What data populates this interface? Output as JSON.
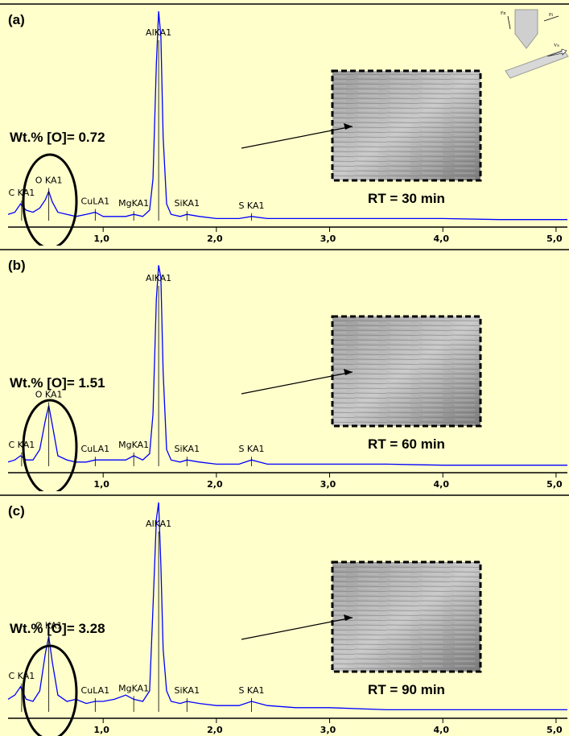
{
  "chart_data": [
    {
      "type": "line",
      "panel_label": "(a)",
      "annotation": "Wt.% [O]= 0.72",
      "caption": "RT = 30 min",
      "color": "#0000ff",
      "x": [
        0.16,
        0.22,
        0.27,
        0.32,
        0.38,
        0.44,
        0.49,
        0.52,
        0.55,
        0.6,
        0.68,
        0.76,
        0.85,
        0.93,
        1.0,
        1.1,
        1.2,
        1.27,
        1.35,
        1.41,
        1.44,
        1.47,
        1.49,
        1.51,
        1.53,
        1.56,
        1.6,
        1.68,
        1.74,
        1.85,
        2.0,
        2.2,
        2.31,
        2.45,
        2.7,
        3.0,
        3.5,
        4.0,
        4.5,
        5.1
      ],
      "values": [
        3,
        4,
        8,
        5,
        4,
        6,
        10,
        14,
        9,
        4,
        3,
        2,
        3,
        4,
        2,
        2,
        2,
        3,
        2,
        5,
        20,
        75,
        100,
        88,
        40,
        8,
        3,
        2,
        3,
        2,
        1,
        1,
        2,
        1,
        1,
        1,
        1,
        1,
        0.5,
        0.5
      ],
      "xlim": [
        0.16,
        5.1
      ],
      "ylim": [
        0,
        100
      ],
      "xticks": [
        {
          "value": 1,
          "label": "1,0"
        },
        {
          "value": 2,
          "label": "2,0"
        },
        {
          "value": 3,
          "label": "3,0"
        },
        {
          "value": 4,
          "label": "4,0"
        },
        {
          "value": 5,
          "label": "5,0"
        }
      ],
      "peaks": [
        {
          "label": "C KA1",
          "x": 0.28
        },
        {
          "label": "O KA1",
          "x": 0.52
        },
        {
          "label": "CuLA1",
          "x": 0.93
        },
        {
          "label": "MgKA1",
          "x": 1.27
        },
        {
          "label": "AlKA1",
          "x": 1.49
        },
        {
          "label": "SiKA1",
          "x": 1.74
        },
        {
          "label": "S KA1",
          "x": 2.31
        }
      ]
    },
    {
      "type": "line",
      "panel_label": "(b)",
      "annotation": "Wt.% [O]= 1.51",
      "caption": "RT = 60 min",
      "color": "#0000ff",
      "x": [
        0.16,
        0.22,
        0.27,
        0.32,
        0.38,
        0.44,
        0.49,
        0.52,
        0.55,
        0.6,
        0.68,
        0.76,
        0.85,
        0.93,
        1.0,
        1.1,
        1.2,
        1.27,
        1.35,
        1.41,
        1.44,
        1.47,
        1.49,
        1.51,
        1.53,
        1.56,
        1.6,
        1.68,
        1.74,
        1.85,
        2.0,
        2.2,
        2.31,
        2.45,
        2.7,
        3.0,
        3.5,
        4.0,
        4.5,
        5.1
      ],
      "values": [
        2,
        3,
        5,
        3,
        3,
        8,
        22,
        29,
        20,
        5,
        3,
        2,
        2,
        3,
        3,
        3,
        3,
        5,
        3,
        6,
        25,
        80,
        96,
        90,
        45,
        8,
        3,
        2,
        3,
        2,
        1,
        1,
        3,
        1,
        1,
        1,
        1,
        0.5,
        0.5,
        0.5
      ],
      "xlim": [
        0.16,
        5.1
      ],
      "ylim": [
        0,
        100
      ],
      "xticks": [
        {
          "value": 1,
          "label": "1,0"
        },
        {
          "value": 2,
          "label": "2,0"
        },
        {
          "value": 3,
          "label": "3,0"
        },
        {
          "value": 4,
          "label": "4,0"
        },
        {
          "value": 5,
          "label": "5,0"
        }
      ],
      "peaks": [
        {
          "label": "C KA1",
          "x": 0.28
        },
        {
          "label": "O KA1",
          "x": 0.52
        },
        {
          "label": "CuLA1",
          "x": 0.93
        },
        {
          "label": "MgKA1",
          "x": 1.27
        },
        {
          "label": "AlKA1",
          "x": 1.49
        },
        {
          "label": "SiKA1",
          "x": 1.74
        },
        {
          "label": "S KA1",
          "x": 2.31
        }
      ]
    },
    {
      "type": "line",
      "panel_label": "(c)",
      "annotation": "Wt.% [O]= 3.28",
      "caption": "RT = 90 min",
      "color": "#0000ff",
      "x": [
        0.16,
        0.22,
        0.27,
        0.32,
        0.38,
        0.44,
        0.49,
        0.52,
        0.55,
        0.6,
        0.68,
        0.76,
        0.85,
        0.93,
        1.0,
        1.1,
        1.2,
        1.27,
        1.35,
        1.41,
        1.44,
        1.47,
        1.49,
        1.51,
        1.53,
        1.56,
        1.6,
        1.68,
        1.74,
        1.85,
        2.0,
        2.2,
        2.31,
        2.45,
        2.7,
        3.0,
        3.5,
        4.0,
        4.5,
        5.1
      ],
      "values": [
        6,
        8,
        12,
        6,
        5,
        10,
        28,
        36,
        24,
        8,
        5,
        6,
        4,
        5,
        5,
        6,
        8,
        6,
        5,
        10,
        50,
        92,
        100,
        70,
        30,
        10,
        5,
        4,
        5,
        4,
        3,
        3,
        5,
        3,
        2,
        2,
        1,
        1,
        1,
        1
      ],
      "xlim": [
        0.16,
        5.1
      ],
      "ylim": [
        0,
        100
      ],
      "xticks": [
        {
          "value": 1,
          "label": "1,0"
        },
        {
          "value": 2,
          "label": "2,0"
        },
        {
          "value": 3,
          "label": "3,0"
        },
        {
          "value": 4,
          "label": "4,0"
        },
        {
          "value": 5,
          "label": "5,0"
        }
      ],
      "peaks": [
        {
          "label": "C KA1",
          "x": 0.28
        },
        {
          "label": "O KA1",
          "x": 0.52
        },
        {
          "label": "CuLA1",
          "x": 0.93
        },
        {
          "label": "MgKA1",
          "x": 1.27
        },
        {
          "label": "AlKA1",
          "x": 1.49
        },
        {
          "label": "SiKA1",
          "x": 1.74
        },
        {
          "label": "S KA1",
          "x": 2.31
        }
      ]
    }
  ],
  "schematic": {
    "labels": [
      "Fn",
      "Ft",
      "Vs"
    ]
  }
}
